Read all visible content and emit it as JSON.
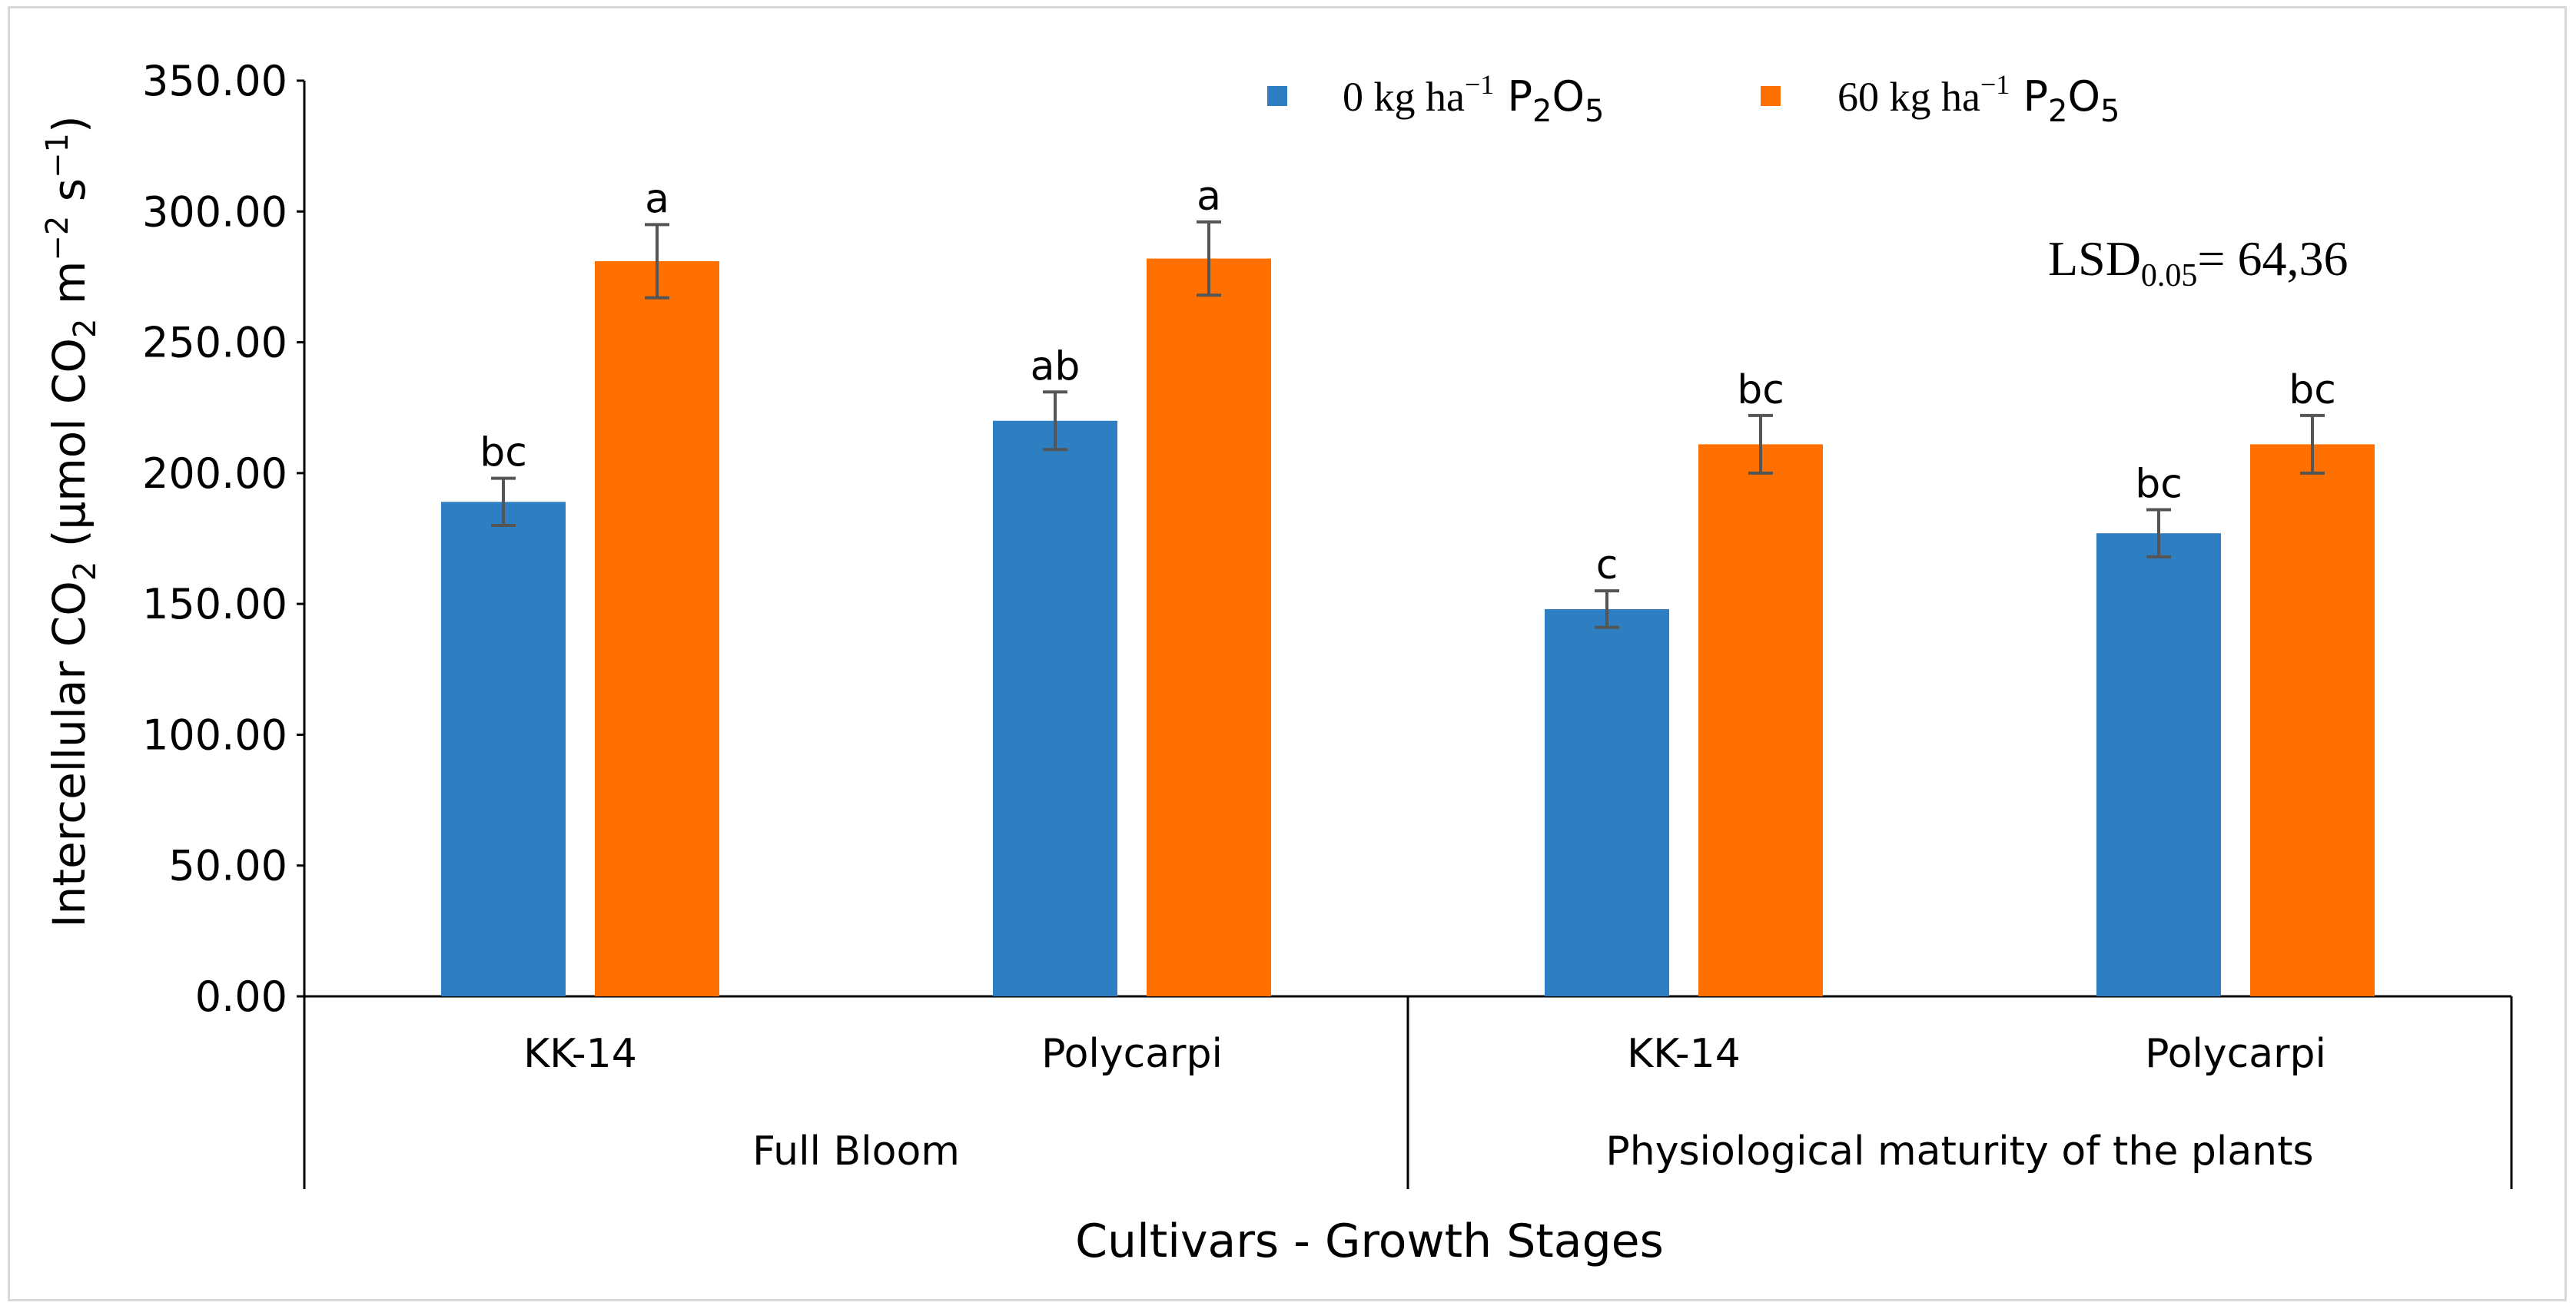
{
  "chart_data": {
    "type": "bar",
    "title": "",
    "xlabel": "Cultivars - Growth Stages",
    "ylabel": {
      "main": "Intercellular CO",
      "sub2": "2",
      "open": " (μmol CO",
      "sub2b": "2",
      "units": " m",
      "sup1": "−2",
      "s": " s",
      "sup2": "−1",
      "close": ")"
    },
    "ylim": [
      0,
      350
    ],
    "yticks": [
      "0.00",
      "50.00",
      "100.00",
      "150.00",
      "200.00",
      "250.00",
      "300.00",
      "350.00"
    ],
    "ytick_values": [
      0,
      50,
      100,
      150,
      200,
      250,
      300,
      350
    ],
    "groups": [
      {
        "name": "Full Bloom",
        "categories": [
          "KK-14",
          "Polycarpi"
        ]
      },
      {
        "name": "Physiological maturity of the plants",
        "categories": [
          "KK-14",
          "Polycarpi"
        ]
      }
    ],
    "categories": [
      "KK-14",
      "Polycarpi",
      "KK-14",
      "Polycarpi"
    ],
    "series": [
      {
        "name": "0 kg ha⁻¹ P₂O₅",
        "legend": {
          "prefix": "0 kg ha",
          "sup": "−1",
          "p": " P",
          "sub1": "2",
          "o": "O",
          "sub2": "5"
        },
        "color": "#2e7fc1",
        "values": [
          189,
          220,
          148,
          177
        ],
        "errors": [
          9,
          11,
          7,
          9
        ],
        "labels": [
          "bc",
          "ab",
          "c",
          "bc"
        ]
      },
      {
        "name": "60 kg ha⁻¹ P₂O₅",
        "legend": {
          "prefix": "60 kg ha",
          "sup": "−1",
          "p": " P",
          "sub1": "2",
          "o": "O",
          "sub2": "5"
        },
        "color": "#ff7000",
        "values": [
          281,
          282,
          211,
          211
        ],
        "errors": [
          14,
          14,
          11,
          11
        ],
        "labels": [
          "a",
          "a",
          "bc",
          "bc"
        ]
      }
    ],
    "annotation": {
      "prefix": "LSD",
      "sub": "0.05",
      "suffix": "= 64,36"
    },
    "legend_position": "top-right"
  }
}
